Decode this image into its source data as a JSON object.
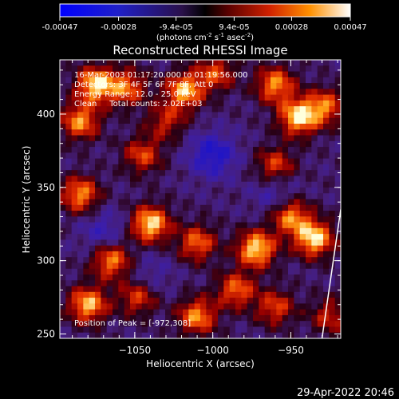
{
  "colorbar": {
    "tick_labels": [
      "-0.00047",
      "-0.00028",
      "-9.4e-05",
      "9.4e-05",
      "0.00028",
      "0.00047"
    ],
    "tick_values": [
      -0.00047,
      -0.00028,
      -9.4e-05,
      9.4e-05,
      0.00028,
      0.00047
    ],
    "range": [
      -0.00047,
      0.00047
    ],
    "unit_base": "(photons cm",
    "unit_exp1": "-2",
    "unit_mid": " s",
    "unit_exp2": "-1",
    "unit_mid2": " asec",
    "unit_exp3": "-2",
    "unit_end": ")"
  },
  "chart_data": {
    "type": "heatmap",
    "title": "Reconstructed RHESSI Image",
    "xlabel": "Heliocentric X (arcsec)",
    "ylabel": "Heliocentric Y (arcsec)",
    "xlim": [
      -1098,
      -918
    ],
    "ylim": [
      247,
      437
    ],
    "xticks": [
      -1050,
      -1000,
      -950
    ],
    "xtick_labels": [
      "−1050",
      "−1000",
      "−950"
    ],
    "yticks": [
      250,
      300,
      350,
      400
    ],
    "ytick_labels": [
      "250",
      "300",
      "350",
      "400"
    ],
    "info_lines": [
      "16-Mar-2003 01:17:20.000 to 01:19:56.000",
      "Detectors: 3F 4F 5F 6F 7F 8F, Att 0",
      "Energy Range: 12.0 - 25.0 keV",
      "Clean     Total counts: 2.02E+03"
    ],
    "peak_label": "Position of Peak = [-972,308]",
    "peak": [
      -972,
      308
    ],
    "limb_line": [
      [
        -930,
        247
      ],
      [
        -918,
        335
      ]
    ],
    "bright_sources": [
      [
        -1075,
        420,
        1.0
      ],
      [
        -1085,
        395,
        0.8
      ],
      [
        -1055,
        418,
        0.7
      ],
      [
        -1018,
        416,
        0.9
      ],
      [
        -998,
        428,
        0.6
      ],
      [
        -960,
        420,
        0.8
      ],
      [
        -945,
        398,
        1.0
      ],
      [
        -928,
        405,
        0.7
      ],
      [
        -1045,
        372,
        0.6
      ],
      [
        -1085,
        345,
        0.8
      ],
      [
        -1040,
        325,
        1.0
      ],
      [
        -1065,
        300,
        0.8
      ],
      [
        -1010,
        312,
        0.7
      ],
      [
        -972,
        308,
        1.0
      ],
      [
        -950,
        330,
        0.8
      ],
      [
        -935,
        315,
        1.0
      ],
      [
        -960,
        365,
        0.6
      ],
      [
        -1080,
        270,
        0.9
      ],
      [
        -1048,
        275,
        0.6
      ],
      [
        -1010,
        262,
        0.8
      ],
      [
        -985,
        280,
        0.7
      ],
      [
        -960,
        268,
        0.6
      ],
      [
        -925,
        262,
        0.5
      ],
      [
        -1030,
        395,
        0.5
      ]
    ],
    "dark_sources": [
      [
        -1000,
        372,
        1.0
      ],
      [
        -1070,
        320,
        0.6
      ],
      [
        -960,
        345,
        0.5
      ],
      [
        -1040,
        290,
        0.4
      ]
    ]
  },
  "footer": {
    "timestamp": "29-Apr-2022 20:46"
  }
}
